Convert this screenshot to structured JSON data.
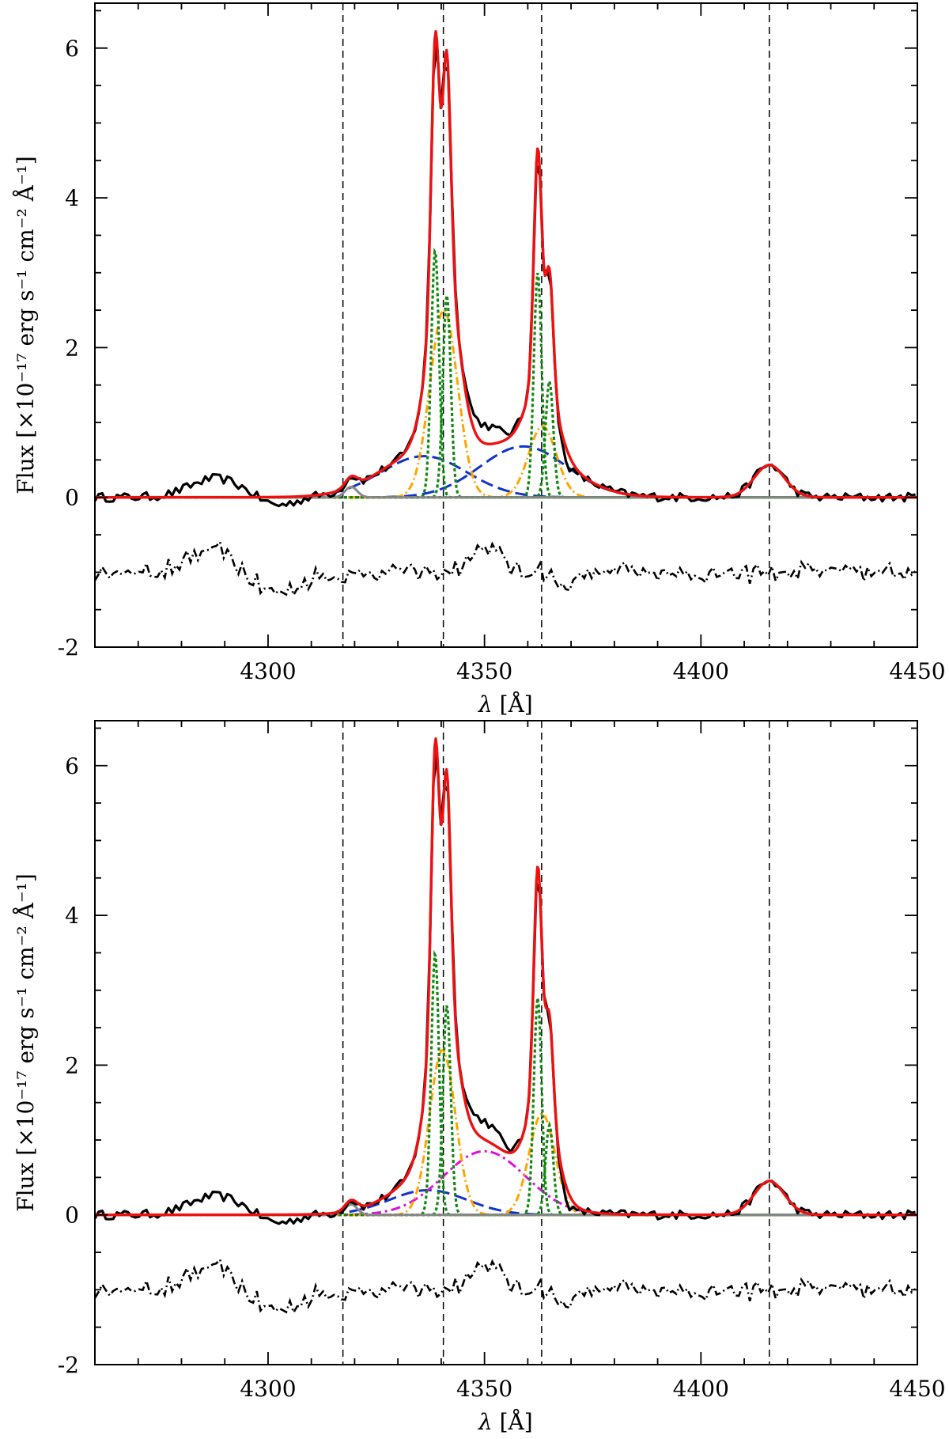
{
  "chart_data": [
    {
      "type": "line",
      "panel": "top",
      "xlabel_symbol": "λ",
      "xlabel_unit": "[Å]",
      "ylabel": "Flux [×10⁻¹⁷ erg s⁻¹ cm⁻² Å⁻¹]",
      "xlim": [
        4260,
        4450
      ],
      "ylim": [
        -2,
        6.6
      ],
      "xticks": [
        4300,
        4350,
        4400,
        4450
      ],
      "xtick_labels": [
        "4300",
        "4350",
        "4400",
        "4450"
      ],
      "yticks": [
        -2,
        0,
        2,
        4,
        6
      ],
      "ytick_labels": [
        "-2",
        "0",
        "2",
        "4",
        "6"
      ],
      "vlines": [
        4317.3,
        4340.5,
        4363.2,
        4415.8
      ],
      "components": {
        "fit_total_color": "#ee1111",
        "narrow_color": "#118811",
        "intermediate_color": "#ffa500",
        "broad_color": "#1133cc",
        "weak_line_color": "#888888",
        "narrow": [
          {
            "center": 4338.6,
            "amp": 3.3,
            "sigma": 0.9
          },
          {
            "center": 4341.3,
            "amp": 2.7,
            "sigma": 0.9
          },
          {
            "center": 4362.3,
            "amp": 3.0,
            "sigma": 0.9
          },
          {
            "center": 4365.0,
            "amp": 1.55,
            "sigma": 0.9
          }
        ],
        "intermediate": [
          {
            "center": 4340.6,
            "amp": 2.5,
            "sigma": 3.2
          },
          {
            "center": 4363.4,
            "amp": 0.95,
            "sigma": 3.2
          }
        ],
        "broad": [
          {
            "center": 4336.0,
            "amp": 0.55,
            "sigma": 10.0
          },
          {
            "center": 4359.0,
            "amp": 0.68,
            "sigma": 10.0
          }
        ],
        "weak": [
          {
            "center": 4319.2,
            "amp": 0.14,
            "sigma": 1.4
          }
        ],
        "extra_line": {
          "center": 4415.8,
          "amp": 0.43,
          "sigma": 3.5
        }
      },
      "residual_offset": -1.0
    },
    {
      "type": "line",
      "panel": "bottom",
      "xlabel_symbol": "λ",
      "xlabel_unit": "[Å]",
      "ylabel": "Flux [×10⁻¹⁷ erg s⁻¹ cm⁻² Å⁻¹]",
      "xlim": [
        4260,
        4450
      ],
      "ylim": [
        -2,
        6.6
      ],
      "xticks": [
        4300,
        4350,
        4400,
        4450
      ],
      "xtick_labels": [
        "4300",
        "4350",
        "4400",
        "4450"
      ],
      "yticks": [
        -2,
        0,
        2,
        4,
        6
      ],
      "ytick_labels": [
        "-2",
        "0",
        "2",
        "4",
        "6"
      ],
      "vlines": [
        4317.3,
        4340.5,
        4363.2,
        4415.8
      ],
      "components": {
        "fit_total_color": "#ee1111",
        "narrow_color": "#118811",
        "intermediate_color": "#ffa500",
        "broad_color": "#1133cc",
        "extra_color": "#dd11dd",
        "weak_line_color": "#888888",
        "narrow": [
          {
            "center": 4338.6,
            "amp": 3.5,
            "sigma": 0.9
          },
          {
            "center": 4341.3,
            "amp": 2.8,
            "sigma": 0.9
          },
          {
            "center": 4362.3,
            "amp": 2.9,
            "sigma": 0.9
          },
          {
            "center": 4365.0,
            "amp": 1.2,
            "sigma": 0.9
          }
        ],
        "intermediate": [
          {
            "center": 4340.3,
            "amp": 2.2,
            "sigma": 3.0
          },
          {
            "center": 4363.3,
            "amp": 1.35,
            "sigma": 3.0
          }
        ],
        "broad": [
          {
            "center": 4337.0,
            "amp": 0.33,
            "sigma": 9.0
          }
        ],
        "extra": [
          {
            "center": 4350.0,
            "amp": 0.85,
            "sigma": 9.5
          }
        ],
        "weak": [
          {
            "center": 4319.2,
            "amp": 0.14,
            "sigma": 1.4
          }
        ],
        "extra_line": {
          "center": 4415.8,
          "amp": 0.45,
          "sigma": 3.5
        }
      },
      "residual_offset": -1.0
    }
  ]
}
